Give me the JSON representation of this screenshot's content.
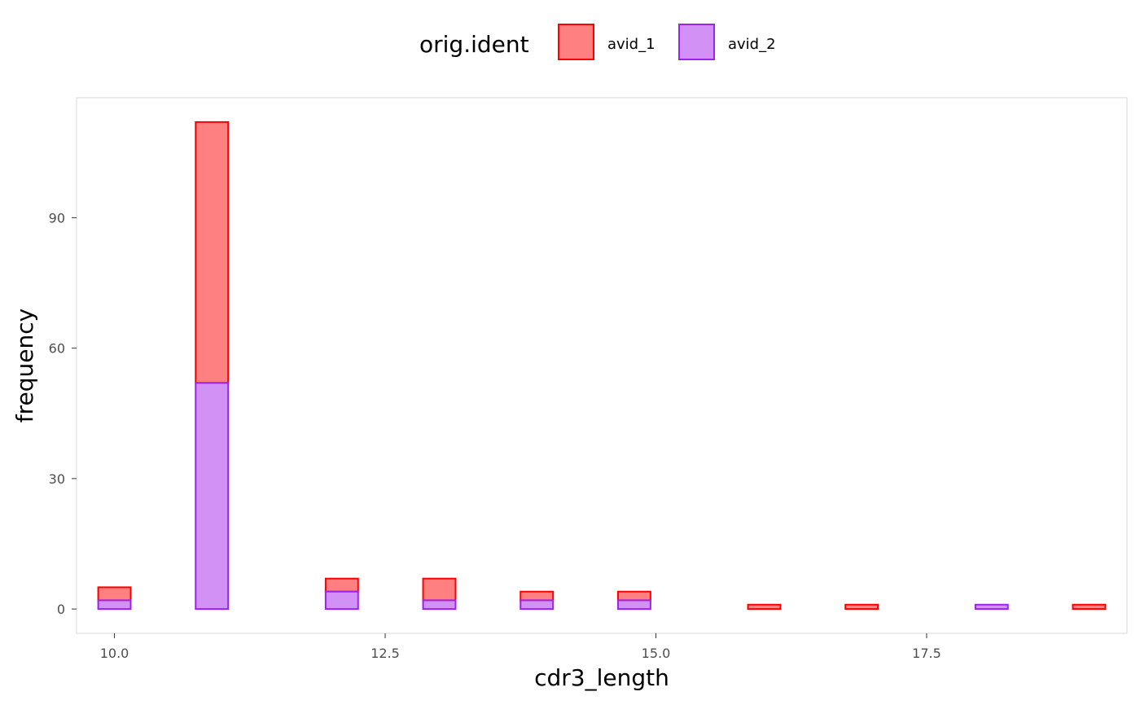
{
  "chart_data": {
    "type": "bar",
    "stacked": true,
    "xlabel": "cdr3_length",
    "ylabel": "frequency",
    "xlim": [
      9.65,
      19.35
    ],
    "ylim": [
      -5.6,
      117.6
    ],
    "x_ticks": [
      10.0,
      12.5,
      15.0,
      17.5
    ],
    "x_tick_labels": [
      "10.0",
      "12.5",
      "15.0",
      "17.5"
    ],
    "y_ticks": [
      0,
      30,
      60,
      90
    ],
    "y_tick_labels": [
      "0",
      "30",
      "60",
      "90"
    ],
    "grid": false,
    "legend": {
      "title": "orig.ident",
      "position": "top"
    },
    "bin_width": 0.3,
    "bin_centers": [
      10.0,
      10.3,
      10.6,
      10.9,
      11.2,
      11.5,
      11.8,
      12.1,
      12.4,
      12.7,
      13.0,
      13.3,
      13.6,
      13.9,
      14.2,
      14.5,
      14.8,
      15.1,
      15.4,
      15.7,
      16.0,
      16.3,
      16.6,
      16.9,
      17.2,
      17.5,
      17.8,
      18.1,
      18.4,
      18.7,
      19.0
    ],
    "series": [
      {
        "name": "avid_2",
        "fill": "#d291f5",
        "stroke": "#a020f0",
        "values": [
          2,
          0,
          0,
          52,
          0,
          0,
          0,
          4,
          0,
          0,
          2,
          0,
          0,
          2,
          0,
          0,
          2,
          0,
          0,
          0,
          0,
          0,
          0,
          0,
          0,
          0,
          0,
          1,
          0,
          0,
          0
        ]
      },
      {
        "name": "avid_1",
        "fill": "#ff8080",
        "stroke": "#ff0000",
        "values": [
          3,
          0,
          0,
          60,
          0,
          0,
          0,
          3,
          0,
          0,
          5,
          0,
          0,
          2,
          0,
          0,
          2,
          0,
          0,
          0,
          1,
          0,
          0,
          1,
          0,
          0,
          0,
          0,
          0,
          0,
          1
        ]
      }
    ]
  }
}
